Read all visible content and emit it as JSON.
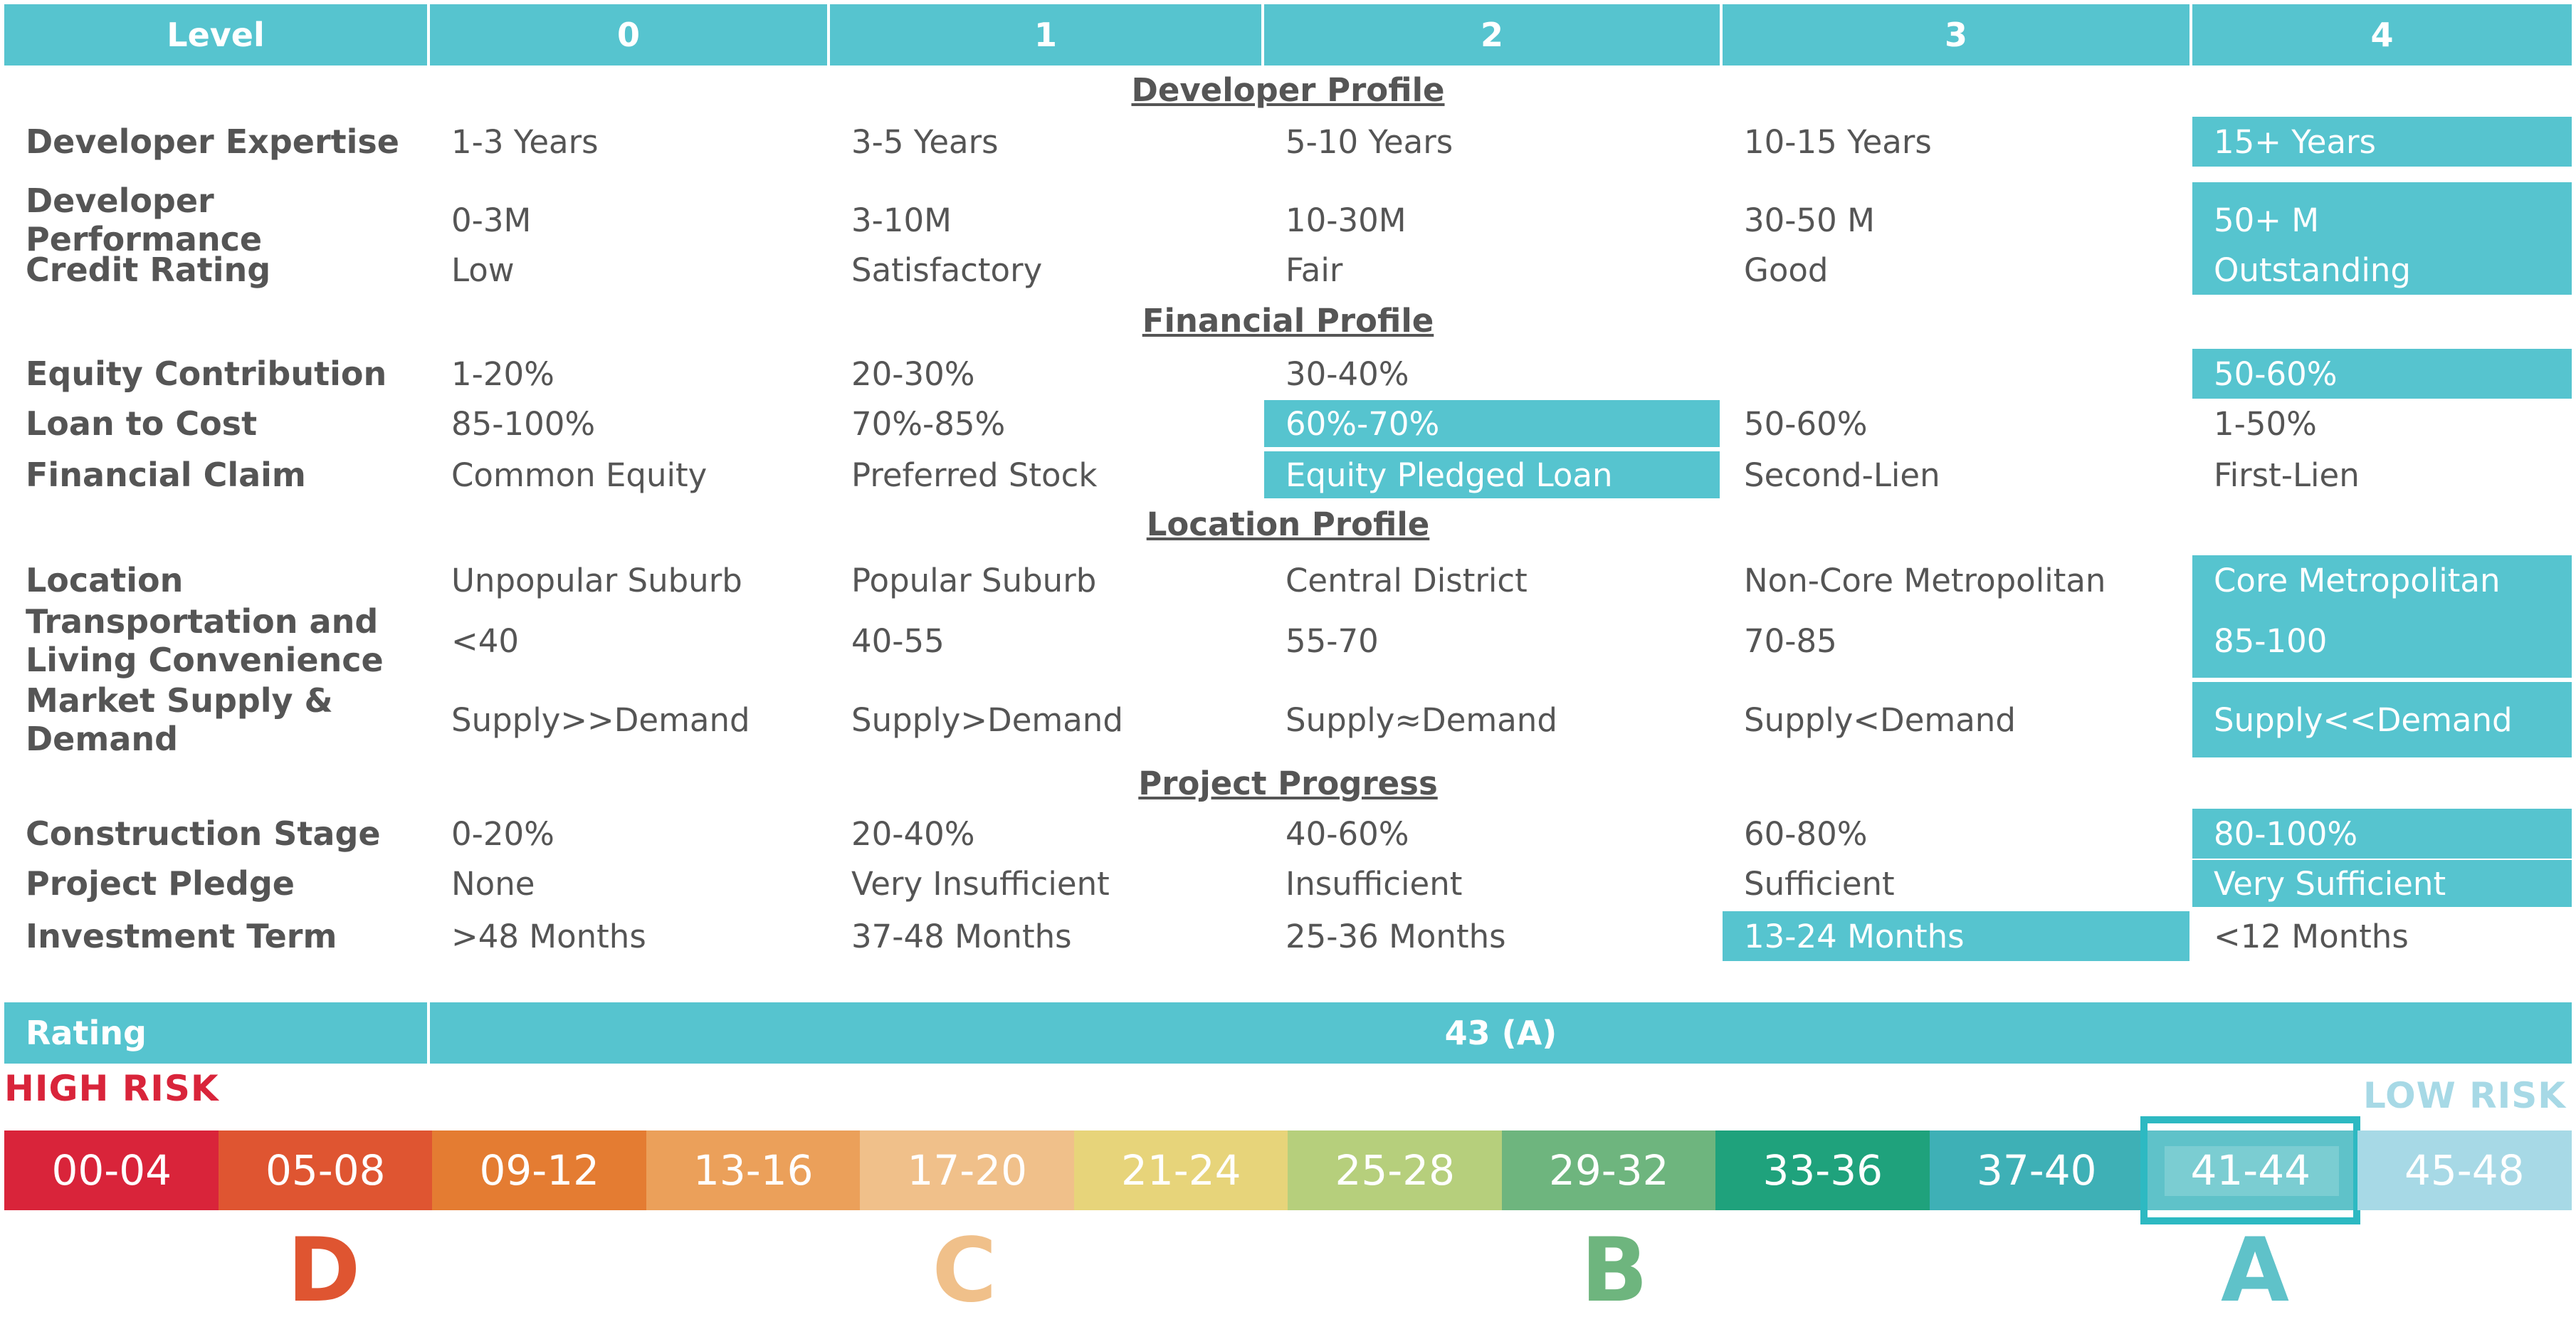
{
  "header": {
    "level_label": "Level",
    "levels": [
      "0",
      "1",
      "2",
      "3",
      "4"
    ]
  },
  "sections": {
    "developer": "Developer Profile",
    "financial": "Financial Profile",
    "location": "Location Profile",
    "project": "Project Progress"
  },
  "rows": [
    {
      "label": "Developer Expertise",
      "values": [
        "1-3 Years",
        "3-5 Years",
        "5-10 Years",
        "10-15 Years",
        "15+  Years"
      ],
      "highlight": 4
    },
    {
      "label": "Developer Performance",
      "values": [
        "0-3M",
        "3-10M",
        "10-30M",
        "30-50 M",
        "50+ M"
      ],
      "highlight": 4
    },
    {
      "label": "Credit Rating",
      "values": [
        "Low",
        "Satisfactory",
        "Fair",
        "Good",
        "Outstanding"
      ],
      "highlight": 4
    },
    {
      "label": "Equity Contribution",
      "values": [
        "1-20%",
        "20-30%",
        "30-40%",
        "",
        "50-60%"
      ],
      "highlight": 4
    },
    {
      "label": "Loan to Cost",
      "values": [
        "85-100%",
        "70%-85%",
        "60%-70%",
        "50-60%",
        "1-50%"
      ],
      "highlight": 2
    },
    {
      "label": "Financial Claim",
      "values": [
        "Common Equity",
        "Preferred Stock",
        "Equity Pledged Loan",
        "Second-Lien",
        "First-Lien"
      ],
      "highlight": 2
    },
    {
      "label": "Location",
      "values": [
        "Unpopular Suburb",
        "Popular Suburb",
        "Central District",
        "Non-Core Metropolitan",
        "Core Metropolitan"
      ],
      "highlight": 4
    },
    {
      "label": "Transportation and Living Convenience",
      "values": [
        "<40",
        "40-55",
        "55-70",
        "70-85",
        "85-100"
      ],
      "highlight": 4
    },
    {
      "label": "Market Supply & Demand",
      "values": [
        "Supply>>Demand",
        "Supply>Demand",
        "Supply≈Demand",
        "Supply<Demand",
        "Supply<<Demand"
      ],
      "highlight": 4
    },
    {
      "label": "Construction Stage",
      "values": [
        "0-20%",
        "20-40%",
        "40-60%",
        "60-80%",
        "80-100%"
      ],
      "highlight": 4
    },
    {
      "label": "Project Pledge",
      "values": [
        "None",
        "Very Insufficient",
        "Insufficient",
        "Sufficient",
        "Very Sufficient"
      ],
      "highlight": 4
    },
    {
      "label": "Investment Term",
      "values": [
        ">48 Months",
        "37-48 Months",
        "25-36 Months",
        "13-24 Months",
        "<12 Months"
      ],
      "highlight": 3
    }
  ],
  "rating": {
    "label": "Rating",
    "value": "43 (A)"
  },
  "risk": {
    "high": "HIGH RISK",
    "low": "LOW RISK"
  },
  "scale": {
    "segments": [
      "00-04",
      "05-08",
      "09-12",
      "13-16",
      "17-20",
      "21-24",
      "25-28",
      "29-32",
      "33-36",
      "37-40",
      "41-44",
      "45-48"
    ],
    "colors": [
      "#d9243a",
      "#df5531",
      "#e47c32",
      "#eba05a",
      "#f0c08a",
      "#e7d47a",
      "#b6cf7c",
      "#6eb57e",
      "#1fa27c",
      "#3eb0b6",
      "#5fc2c9",
      "#a7d9e6"
    ],
    "selected_index": 10
  },
  "grades": [
    {
      "letter": "D",
      "color": "#df5531"
    },
    {
      "letter": "C",
      "color": "#f0c08a"
    },
    {
      "letter": "B",
      "color": "#6eb57e"
    },
    {
      "letter": "A",
      "color": "#5fc2c9"
    }
  ]
}
